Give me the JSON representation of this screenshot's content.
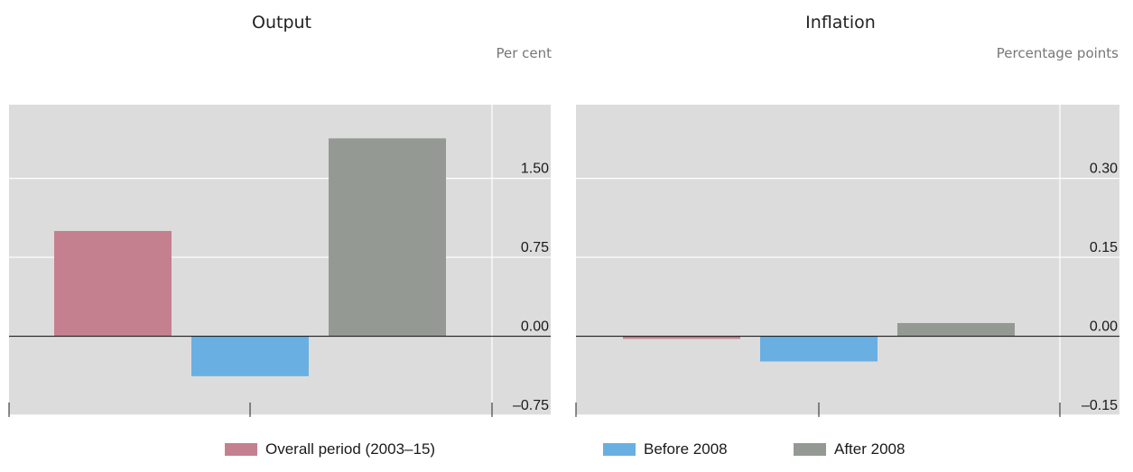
{
  "chart_data": [
    {
      "type": "bar",
      "title": "Output",
      "unit": "Per cent",
      "categories": [
        "Overall period (2003–15)",
        "Before 2008",
        "After 2008"
      ],
      "values": [
        1.0,
        -0.38,
        1.88
      ],
      "colors": [
        "#c4808e",
        "#6aafe2",
        "#949a93"
      ],
      "ylim": [
        -0.75,
        2.2
      ],
      "yticks": [
        -0.75,
        0.0,
        0.75,
        1.5
      ],
      "ytick_labels": [
        "–0.75",
        "0.00",
        "0.75",
        "1.50"
      ],
      "grid": true
    },
    {
      "type": "bar",
      "title": "Inflation",
      "unit": "Percentage points",
      "categories": [
        "Overall period (2003–15)",
        "Before 2008",
        "After 2008"
      ],
      "values": [
        -0.005,
        -0.048,
        0.025
      ],
      "colors": [
        "#c4808e",
        "#6aafe2",
        "#949a93"
      ],
      "ylim": [
        -0.15,
        0.44
      ],
      "yticks": [
        -0.15,
        0.0,
        0.15,
        0.3
      ],
      "ytick_labels": [
        "–0.15",
        "0.00",
        "0.15",
        "0.30"
      ],
      "grid": true
    }
  ],
  "legend": {
    "placement": "bottom",
    "items": [
      {
        "label": "Overall period (2003–15)",
        "color": "#c4808e"
      },
      {
        "label": "Before 2008",
        "color": "#6aafe2"
      },
      {
        "label": "After 2008",
        "color": "#949a93"
      }
    ]
  }
}
